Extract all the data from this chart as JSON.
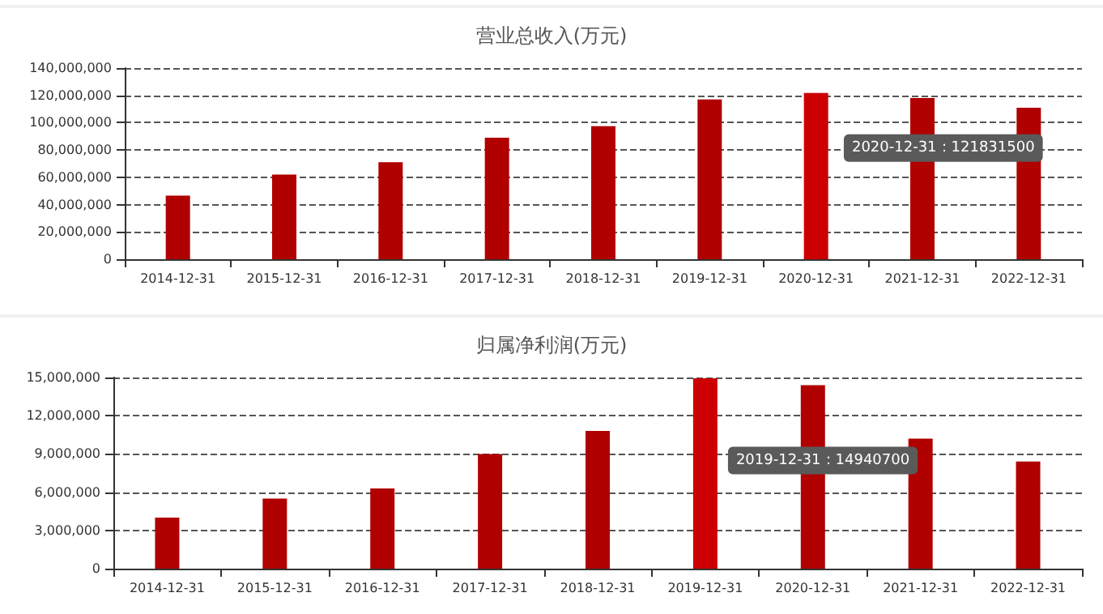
{
  "chart_data": [
    {
      "type": "bar",
      "title": "营业总收入(万元)",
      "categories": [
        "2014-12-31",
        "2015-12-31",
        "2016-12-31",
        "2017-12-31",
        "2018-12-31",
        "2019-12-31",
        "2020-12-31",
        "2021-12-31",
        "2022-12-31"
      ],
      "values": [
        46500000,
        62000000,
        71000000,
        89000000,
        97500000,
        117000000,
        121831500,
        118000000,
        111000000
      ],
      "colors": [
        "#b00000",
        "#b00000",
        "#b00000",
        "#b00000",
        "#b00000",
        "#b00000",
        "#cc0000",
        "#b00000",
        "#b00000"
      ],
      "ylim": [
        0,
        140000000
      ],
      "yticks": [
        {
          "value": 0,
          "label": "0"
        },
        {
          "value": 20000000,
          "label": "20,000,000"
        },
        {
          "value": 40000000,
          "label": "40,000,000"
        },
        {
          "value": 60000000,
          "label": "60,000,000"
        },
        {
          "value": 80000000,
          "label": "80,000,000"
        },
        {
          "value": 100000000,
          "label": "100,000,000"
        },
        {
          "value": 120000000,
          "label": "120,000,000"
        },
        {
          "value": 140000000,
          "label": "140,000,000"
        }
      ],
      "grid": "y",
      "annotations": [
        "2020-12-31：121831500"
      ]
    },
    {
      "type": "bar",
      "title": "归属净利润(万元)",
      "categories": [
        "2014-12-31",
        "2015-12-31",
        "2016-12-31",
        "2017-12-31",
        "2018-12-31",
        "2019-12-31",
        "2020-12-31",
        "2021-12-31",
        "2022-12-31"
      ],
      "values": [
        4000000,
        5500000,
        6300000,
        9000000,
        10800000,
        14940700,
        14400000,
        10200000,
        8400000
      ],
      "colors": [
        "#b00000",
        "#b00000",
        "#b00000",
        "#b00000",
        "#b00000",
        "#cc0000",
        "#b00000",
        "#b00000",
        "#b00000"
      ],
      "ylim": [
        0,
        15000000
      ],
      "yticks": [
        {
          "value": 0,
          "label": "0"
        },
        {
          "value": 3000000,
          "label": "3,000,000"
        },
        {
          "value": 6000000,
          "label": "6,000,000"
        },
        {
          "value": 9000000,
          "label": "9,000,000"
        },
        {
          "value": 12000000,
          "label": "12,000,000"
        },
        {
          "value": 15000000,
          "label": "15,000,000"
        }
      ],
      "grid": "y",
      "annotations": [
        "2019-12-31：14940700"
      ]
    }
  ]
}
